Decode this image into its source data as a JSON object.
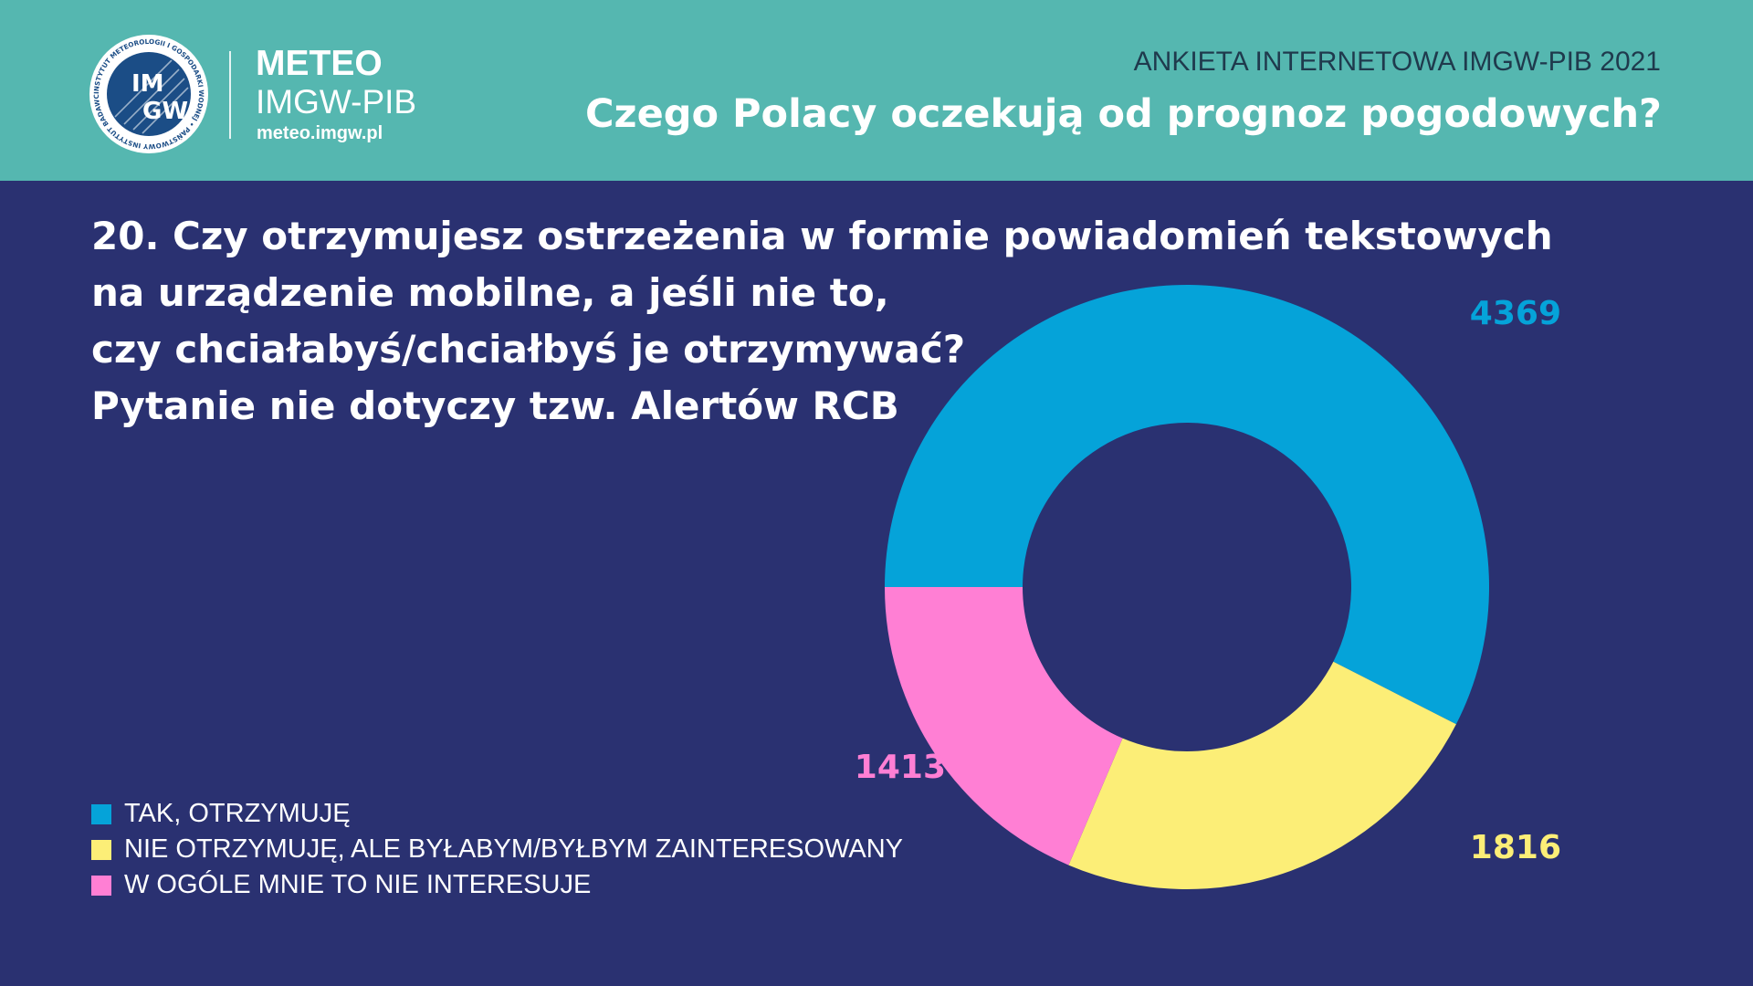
{
  "header": {
    "brand_title": "METEO",
    "brand_subtitle": "IMGW-PIB",
    "brand_url": "meteo.imgw.pl",
    "logo_text": "IMGW",
    "logo_ring_text": "INSTYTUT METEOROLOGII I GOSPODARKI WODNEJ • PAŃSTWOWY INSTYTUT BADAWCZY",
    "survey_label": "ANKIETA INTERNETOWA IMGW-PIB 2021",
    "title": "Czego Polacy oczekują od prognoz pogodowych?"
  },
  "question": {
    "lines": [
      "20. Czy otrzymujesz ostrzeżenia w formie powiadomień tekstowych",
      "na urządzenie mobilne, a jeśli nie to,",
      "czy chciałabyś/chciałbyś je otrzymywać?",
      "Pytanie nie dotyczy tzw. Alertów RCB"
    ]
  },
  "colors": {
    "background": "#2a3171",
    "header": "#55b7b0",
    "series": [
      "#05a3d9",
      "#fcee77",
      "#ff7fd4"
    ]
  },
  "chart_data": {
    "type": "pie",
    "style": "donut",
    "categories": [
      "TAK, OTRZYMUJĘ",
      "NIE OTRZYMUJĘ, ALE BYŁABYM/BYŁBYM ZAINTERESOWANY",
      "W OGÓLE MNIE TO NIE INTERESUJE"
    ],
    "values": [
      4369,
      1816,
      1413
    ],
    "data_labels": [
      "4369",
      "1816",
      "1413"
    ],
    "colors": [
      "#05a3d9",
      "#fcee77",
      "#ff7fd4"
    ],
    "start": "9 o'clock, clockwise",
    "legend_position": "bottom-left"
  }
}
